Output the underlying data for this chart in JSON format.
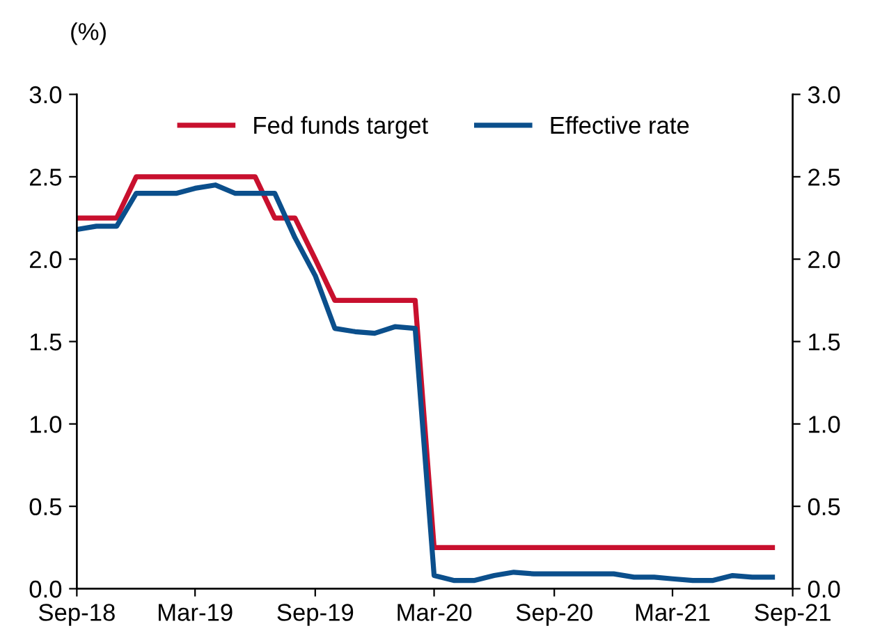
{
  "chart_data": {
    "type": "line",
    "ylabel": "(%)",
    "x": [
      "2018-09",
      "2018-10",
      "2018-11",
      "2018-12",
      "2019-01",
      "2019-02",
      "2019-03",
      "2019-04",
      "2019-05",
      "2019-06",
      "2019-07",
      "2019-08",
      "2019-09",
      "2019-10",
      "2019-11",
      "2019-12",
      "2020-01",
      "2020-02",
      "2020-03",
      "2020-04",
      "2020-05",
      "2020-06",
      "2020-07",
      "2020-08",
      "2020-09",
      "2020-10",
      "2020-11",
      "2020-12",
      "2021-01",
      "2021-02",
      "2021-03",
      "2021-04",
      "2021-05",
      "2021-06",
      "2021-07",
      "2021-08"
    ],
    "series": [
      {
        "name": "Fed funds target",
        "color": "#c8102e",
        "values": [
          2.25,
          2.25,
          2.25,
          2.5,
          2.5,
          2.5,
          2.5,
          2.5,
          2.5,
          2.5,
          2.25,
          2.25,
          2.0,
          1.75,
          1.75,
          1.75,
          1.75,
          1.75,
          0.25,
          0.25,
          0.25,
          0.25,
          0.25,
          0.25,
          0.25,
          0.25,
          0.25,
          0.25,
          0.25,
          0.25,
          0.25,
          0.25,
          0.25,
          0.25,
          0.25,
          0.25
        ]
      },
      {
        "name": "Effective rate",
        "color": "#0b4f8c",
        "values": [
          2.18,
          2.2,
          2.2,
          2.4,
          2.4,
          2.4,
          2.43,
          2.45,
          2.4,
          2.4,
          2.4,
          2.13,
          1.9,
          1.58,
          1.56,
          1.55,
          1.59,
          1.58,
          0.08,
          0.05,
          0.05,
          0.08,
          0.1,
          0.09,
          0.09,
          0.09,
          0.09,
          0.09,
          0.07,
          0.07,
          0.06,
          0.05,
          0.05,
          0.08,
          0.07,
          0.07
        ]
      }
    ],
    "xlim": [
      "2018-09",
      "2021-09"
    ],
    "xticks": [
      {
        "value": "2018-09",
        "label": "Sep-18"
      },
      {
        "value": "2019-03",
        "label": "Mar-19"
      },
      {
        "value": "2019-09",
        "label": "Sep-19"
      },
      {
        "value": "2020-03",
        "label": "Mar-20"
      },
      {
        "value": "2020-09",
        "label": "Sep-20"
      },
      {
        "value": "2021-03",
        "label": "Mar-21"
      },
      {
        "value": "2021-09",
        "label": "Sep-21"
      }
    ],
    "ylim": [
      0,
      3
    ],
    "yticks": [
      {
        "value": 0,
        "label": "0.0"
      },
      {
        "value": 0.5,
        "label": "0.5"
      },
      {
        "value": 1,
        "label": "1.0"
      },
      {
        "value": 1.5,
        "label": "1.5"
      },
      {
        "value": 2,
        "label": "2.0"
      },
      {
        "value": 2.5,
        "label": "2.5"
      },
      {
        "value": 3,
        "label": "3.0"
      }
    ],
    "y2lim": [
      0,
      3
    ],
    "y2ticks": [
      {
        "value": 0,
        "label": "0.0"
      },
      {
        "value": 0.5,
        "label": "0.5"
      },
      {
        "value": 1,
        "label": "1.0"
      },
      {
        "value": 1.5,
        "label": "1.5"
      },
      {
        "value": 2,
        "label": "2.0"
      },
      {
        "value": 2.5,
        "label": "2.5"
      },
      {
        "value": 3,
        "label": "3.0"
      }
    ],
    "legend": "top",
    "grid": false,
    "marker": "none",
    "line_style": "solid"
  }
}
